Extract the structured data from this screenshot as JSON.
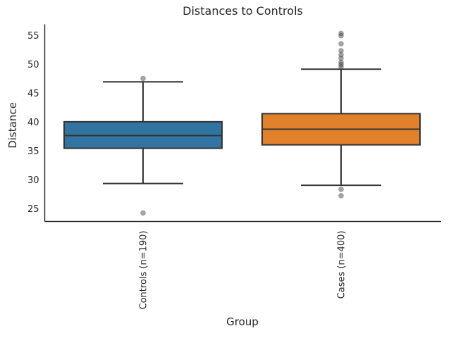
{
  "chart_data": {
    "type": "box",
    "title": "Distances to Controls",
    "xlabel": "Group",
    "ylabel": "Distance",
    "categories": [
      "Controls (n=190)",
      "Cases (n=400)"
    ],
    "yticks": [
      25,
      30,
      35,
      40,
      45,
      50,
      55
    ],
    "ylim": [
      22.8,
      56.9
    ],
    "grid": false,
    "legend": "none",
    "colors": {
      "controls_box": "#3274A1",
      "cases_box": "#E1812C",
      "box_edge": "#333333",
      "spine": "#262626",
      "flier": "#3A3A3A",
      "text": "#262626"
    },
    "series": [
      {
        "name": "Controls (n=190)",
        "q1": 35.5,
        "median": 37.7,
        "q3": 40.1,
        "whisker_low": 29.4,
        "whisker_high": 47.0,
        "outliers": [
          47.6,
          24.3
        ],
        "color": "#3274A1"
      },
      {
        "name": "Cases (n=400)",
        "q1": 36.1,
        "median": 38.8,
        "q3": 41.5,
        "whisker_low": 29.1,
        "whisker_high": 49.2,
        "outliers": [
          55.4,
          55.0,
          53.6,
          52.4,
          51.7,
          51.1,
          50.4,
          50.0,
          49.6,
          28.4,
          27.3
        ],
        "color": "#E1812C"
      }
    ]
  }
}
